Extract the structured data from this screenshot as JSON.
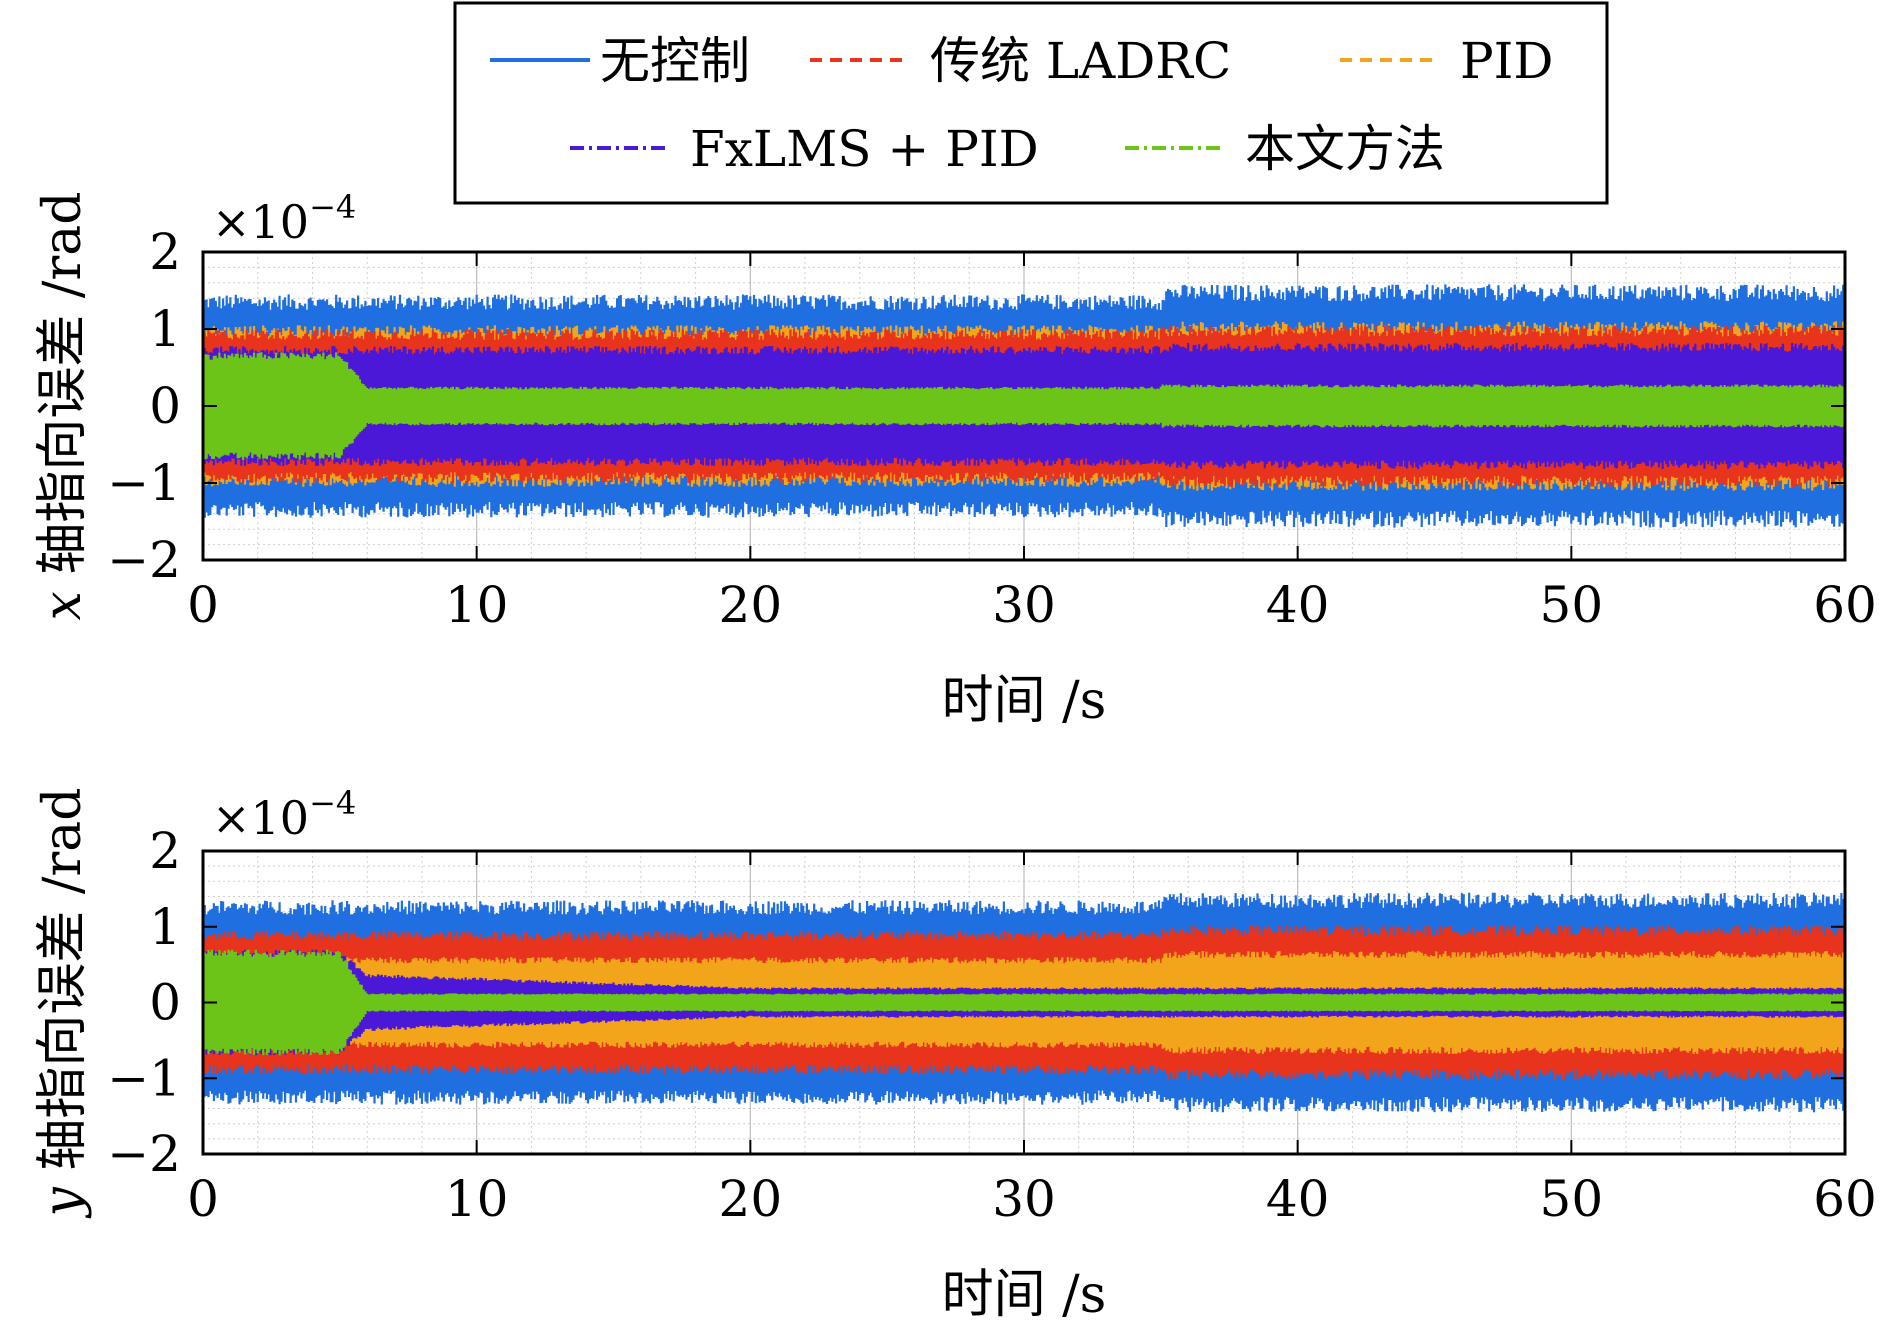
{
  "figure": {
    "background": "#ffffff"
  },
  "legend": {
    "entries": [
      {
        "label": "无控制",
        "color": "#1f6fe0",
        "style": "solid"
      },
      {
        "label": "传统 LADRC",
        "color": "#e8341c",
        "style": "dashed"
      },
      {
        "label": "PID",
        "color": "#f2a41a",
        "style": "dashed"
      },
      {
        "label": "FxLMS + PID",
        "color": "#4a18d6",
        "style": "dashdot"
      },
      {
        "label": "本文方法",
        "color": "#6cc418",
        "style": "dashdot"
      }
    ]
  },
  "chart_data": [
    {
      "type": "line",
      "panel": "x",
      "title": "",
      "xlabel": "时间 /s",
      "ylabel": "x 轴指向误差 /rad",
      "ylabel_var": "x",
      "ylabel_text": "轴指向误差 /rad",
      "multiplier_base": "×10",
      "multiplier_exp": "−4",
      "xlim": [
        0,
        60
      ],
      "ylim": [
        -2,
        2
      ],
      "xticks": [
        0,
        10,
        20,
        30,
        40,
        50,
        60
      ],
      "yticks": [
        -2,
        -1,
        0,
        1,
        2
      ],
      "ytick_labels": [
        "−2",
        "−1",
        "0",
        "1",
        "2"
      ],
      "grid": true,
      "series": [
        {
          "name": "无控制",
          "color": "#1f6fe0",
          "segments": [
            {
              "x": [
                0,
                35
              ],
              "amplitude": 1.45
            },
            {
              "x": [
                35,
                60
              ],
              "amplitude": 1.58
            }
          ]
        },
        {
          "name": "PID",
          "color": "#f2a41a",
          "segments": [
            {
              "x": [
                0,
                35
              ],
              "amplitude": 1.05
            },
            {
              "x": [
                35,
                60
              ],
              "amplitude": 1.1
            }
          ]
        },
        {
          "name": "传统 LADRC",
          "color": "#e8341c",
          "segments": [
            {
              "x": [
                0,
                35
              ],
              "amplitude": 1.0
            },
            {
              "x": [
                35,
                60
              ],
              "amplitude": 1.05
            }
          ]
        },
        {
          "name": "FxLMS + PID",
          "color": "#4a18d6",
          "segments": [
            {
              "x": [
                0,
                35
              ],
              "amplitude": 0.78
            },
            {
              "x": [
                35,
                60
              ],
              "amplitude": 0.82
            }
          ]
        },
        {
          "name": "本文方法",
          "color": "#6cc418",
          "segments": [
            {
              "x": [
                0,
                5
              ],
              "amplitude": 0.7
            },
            {
              "x": [
                5,
                6
              ],
              "amplitude_from": 0.7,
              "amplitude_to": 0.25
            },
            {
              "x": [
                6,
                35
              ],
              "amplitude": 0.25
            },
            {
              "x": [
                35,
                60
              ],
              "amplitude": 0.28
            }
          ]
        }
      ]
    },
    {
      "type": "line",
      "panel": "y",
      "title": "",
      "xlabel": "时间 /s",
      "ylabel": "y 轴指向误差 /rad",
      "ylabel_var": "y",
      "ylabel_text": "轴指向误差 /rad",
      "multiplier_base": "×10",
      "multiplier_exp": "−4",
      "xlim": [
        0,
        60
      ],
      "ylim": [
        -2,
        2
      ],
      "xticks": [
        0,
        10,
        20,
        30,
        40,
        50,
        60
      ],
      "yticks": [
        -2,
        -1,
        0,
        1,
        2
      ],
      "ytick_labels": [
        "−2",
        "−1",
        "0",
        "1",
        "2"
      ],
      "grid": true,
      "series": [
        {
          "name": "无控制",
          "color": "#1f6fe0",
          "segments": [
            {
              "x": [
                0,
                35
              ],
              "amplitude": 1.35
            },
            {
              "x": [
                35,
                60
              ],
              "amplitude": 1.45
            }
          ]
        },
        {
          "name": "传统 LADRC",
          "color": "#e8341c",
          "segments": [
            {
              "x": [
                0,
                35
              ],
              "amplitude": 0.95
            },
            {
              "x": [
                35,
                60
              ],
              "amplitude": 1.02
            }
          ]
        },
        {
          "name": "PID",
          "color": "#f2a41a",
          "segments": [
            {
              "x": [
                0,
                5
              ],
              "amplitude": 0.6
            },
            {
              "x": [
                5,
                35
              ],
              "amplitude": 0.6
            },
            {
              "x": [
                35,
                60
              ],
              "amplitude": 0.68
            }
          ]
        },
        {
          "name": "FxLMS + PID",
          "color": "#4a18d6",
          "segments": [
            {
              "x": [
                0,
                5
              ],
              "amplitude": 0.7
            },
            {
              "x": [
                5,
                6
              ],
              "amplitude_from": 0.7,
              "amplitude_to": 0.38
            },
            {
              "x": [
                6,
                20
              ],
              "amplitude_from": 0.38,
              "amplitude_to": 0.2
            },
            {
              "x": [
                20,
                60
              ],
              "amplitude": 0.2
            }
          ]
        },
        {
          "name": "本文方法",
          "color": "#6cc418",
          "segments": [
            {
              "x": [
                0,
                5
              ],
              "amplitude": 0.7
            },
            {
              "x": [
                5,
                6
              ],
              "amplitude_from": 0.7,
              "amplitude_to": 0.12
            },
            {
              "x": [
                6,
                60
              ],
              "amplitude": 0.12
            }
          ]
        }
      ]
    }
  ]
}
